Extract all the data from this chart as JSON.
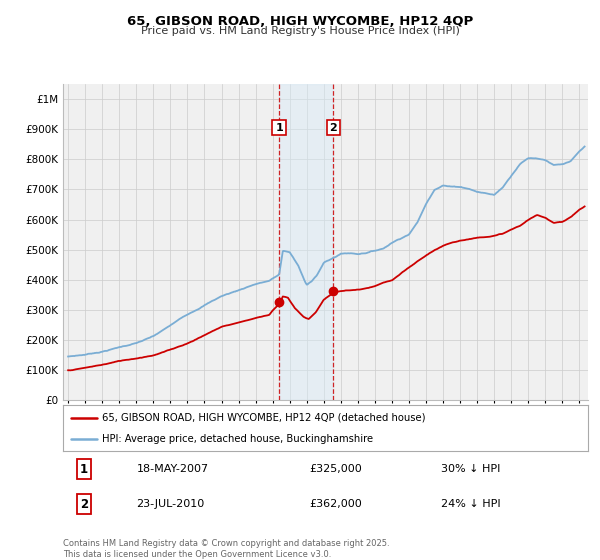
{
  "title": "65, GIBSON ROAD, HIGH WYCOMBE, HP12 4QP",
  "subtitle": "Price paid vs. HM Land Registry's House Price Index (HPI)",
  "legend_line1": "65, GIBSON ROAD, HIGH WYCOMBE, HP12 4QP (detached house)",
  "legend_line2": "HPI: Average price, detached house, Buckinghamshire",
  "annotation1_date": "18-MAY-2007",
  "annotation1_price": "£325,000",
  "annotation1_hpi": "30% ↓ HPI",
  "annotation2_date": "23-JUL-2010",
  "annotation2_price": "£362,000",
  "annotation2_hpi": "24% ↓ HPI",
  "footnote": "Contains HM Land Registry data © Crown copyright and database right 2025.\nThis data is licensed under the Open Government Licence v3.0.",
  "red_color": "#cc0000",
  "blue_color": "#7aadd4",
  "shade_color": "#d8eaf7",
  "grid_color": "#cccccc",
  "bg_color": "#ffffff",
  "plot_bg_color": "#f0f0f0",
  "legend_border_color": "#aaaaaa",
  "ylim": [
    0,
    1050000
  ],
  "yticks": [
    0,
    100000,
    200000,
    300000,
    400000,
    500000,
    600000,
    700000,
    800000,
    900000,
    1000000
  ],
  "ytick_labels": [
    "£0",
    "£100K",
    "£200K",
    "£300K",
    "£400K",
    "£500K",
    "£600K",
    "£700K",
    "£800K",
    "£900K",
    "£1M"
  ],
  "xlim_start": 1994.7,
  "xlim_end": 2025.5,
  "marker1_x": 2007.38,
  "marker1_y": 325000,
  "marker2_x": 2010.55,
  "marker2_y": 362000,
  "vline1_x": 2007.38,
  "vline2_x": 2010.55
}
